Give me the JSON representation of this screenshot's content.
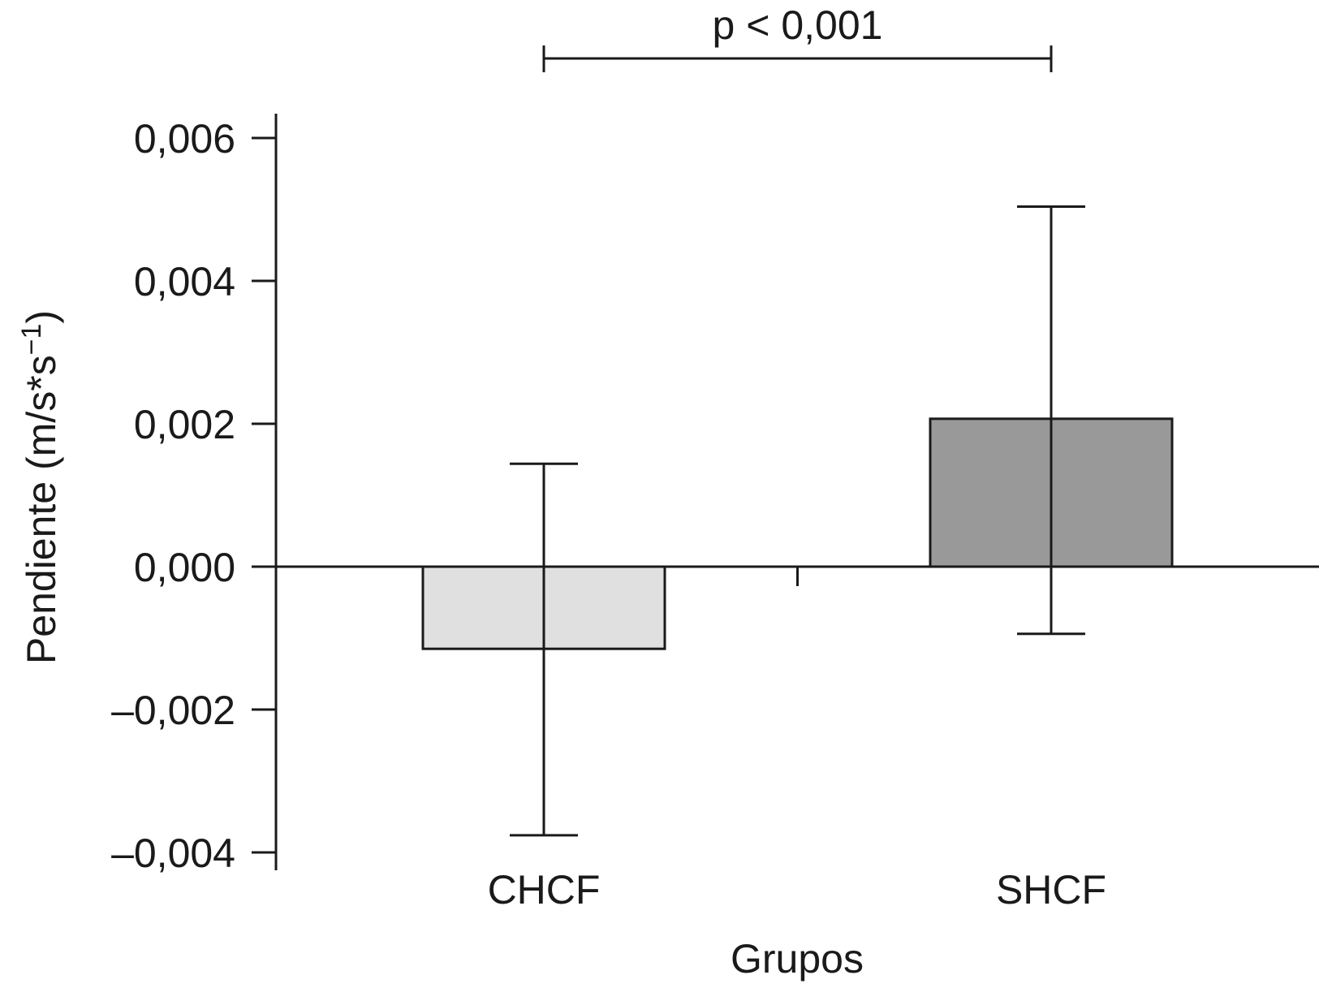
{
  "chart_data": {
    "type": "bar",
    "categories": [
      "CHCF",
      "SHCF"
    ],
    "values": [
      -0.00115,
      0.00207
    ],
    "error_upper": [
      0.00144,
      0.00504
    ],
    "error_lower": [
      -0.00376,
      -0.00094
    ],
    "bar_colors": [
      "#e0e0e0",
      "#999999"
    ],
    "xlabel": "Grupos",
    "ylabel": "Pendiente (m/s*s",
    "ylabel_superscript": "−1",
    "ylabel_close": ")",
    "ylim": [
      -0.004,
      0.006
    ],
    "yticks": [
      0.006,
      0.004,
      0.002,
      0.0,
      -0.002,
      -0.004
    ],
    "ytick_labels": [
      "0,006",
      "0,004",
      "0,002",
      "0,000",
      "–0,002",
      "–0,004"
    ],
    "annotation": {
      "text": "p < 0,001",
      "between": [
        "CHCF",
        "SHCF"
      ]
    },
    "grid": false
  }
}
